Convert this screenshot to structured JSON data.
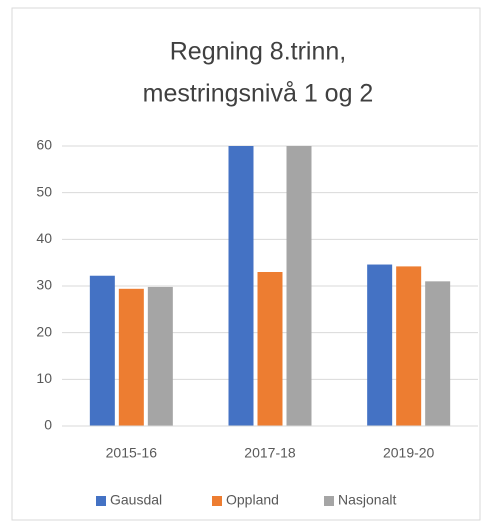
{
  "chart_data": {
    "type": "bar",
    "title": [
      "Regning 8.trinn,",
      "mestringsnivå 1 og 2"
    ],
    "categories": [
      "2015-16",
      "2017-18",
      "2019-20"
    ],
    "series": [
      {
        "name": "Gausdal",
        "color": "#4472c4",
        "values": [
          32.2,
          60,
          34.6
        ]
      },
      {
        "name": "Oppland",
        "color": "#ed7d31",
        "values": [
          29.4,
          33,
          34.2
        ]
      },
      {
        "name": "Nasjonalt",
        "color": "#a5a5a5",
        "values": [
          29.8,
          60,
          31
        ]
      }
    ],
    "ylim": [
      0,
      60
    ],
    "yticks": [
      0,
      10,
      20,
      30,
      40,
      50,
      60
    ],
    "grid": true,
    "legend": "bottom"
  }
}
